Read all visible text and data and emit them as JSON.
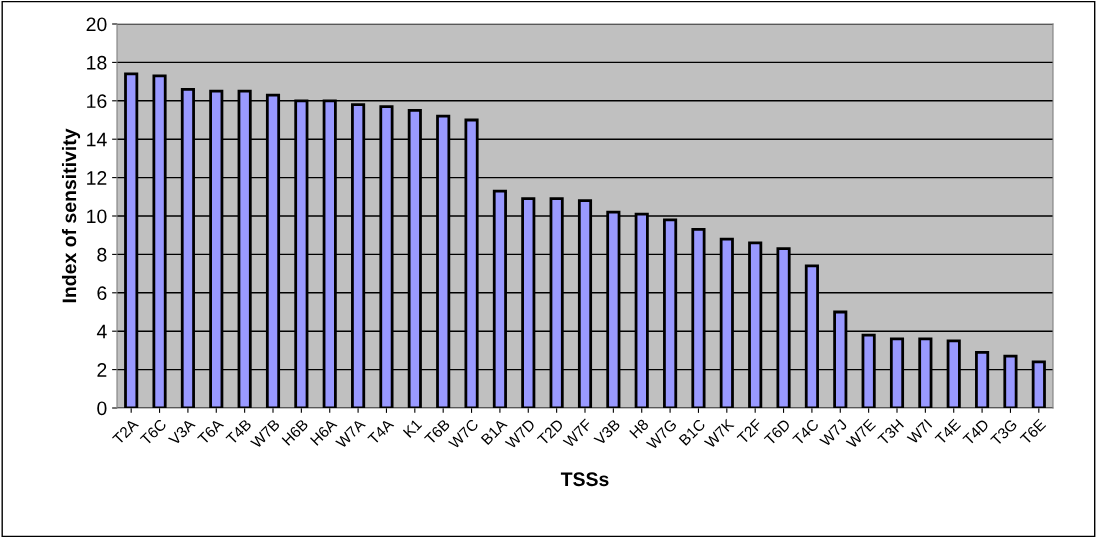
{
  "chart_data": {
    "type": "bar",
    "xlabel": "TSSs",
    "ylabel": "Index of sensitivity",
    "categories": [
      "T2A",
      "T6C",
      "V3A",
      "T6A",
      "T4B",
      "W7B",
      "H6B",
      "H6A",
      "W7A",
      "T4A",
      "K1",
      "T6B",
      "W7C",
      "B1A",
      "W7D",
      "T2D",
      "W7F",
      "V3B",
      "H8",
      "W7G",
      "B1C",
      "W7K",
      "T2F",
      "T6D",
      "T4C",
      "W7J",
      "W7E",
      "T3H",
      "W7I",
      "T4E",
      "T4D",
      "T3G",
      "T6E"
    ],
    "values": [
      17.4,
      17.3,
      16.6,
      16.5,
      16.5,
      16.3,
      16.0,
      16.0,
      15.8,
      15.7,
      15.5,
      15.2,
      15.0,
      11.3,
      10.9,
      10.9,
      10.8,
      10.2,
      10.1,
      9.8,
      9.3,
      8.8,
      8.6,
      8.3,
      7.4,
      5.0,
      3.8,
      3.6,
      3.6,
      3.5,
      2.9,
      2.7,
      2.4
    ],
    "color": "#9999ff",
    "ylim": [
      0,
      20
    ],
    "yticks": [
      0,
      2,
      4,
      6,
      8,
      10,
      12,
      14,
      16,
      18,
      20
    ],
    "grid": "y",
    "legend": false
  }
}
